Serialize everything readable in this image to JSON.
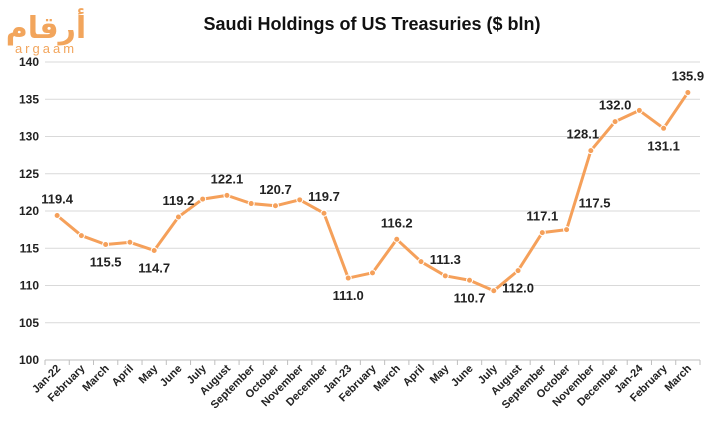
{
  "logo": {
    "arabic": "أرقام",
    "latin": "argaam"
  },
  "colors": {
    "line": "#f5a05a",
    "grid": "#d9d9d9",
    "axis": "#bfbfbf",
    "text": "#222222"
  },
  "chart_data": {
    "type": "line",
    "title": "Saudi Holdings of US Treasuries ($ bln)",
    "xlabel": "",
    "ylabel": "",
    "ylim": [
      100,
      140
    ],
    "yticks": [
      100,
      105,
      110,
      115,
      120,
      125,
      130,
      135,
      140
    ],
    "grid": "horizontal",
    "legend": "none",
    "categories": [
      "Jan-22",
      "February",
      "March",
      "April",
      "May",
      "June",
      "July",
      "August",
      "September",
      "October",
      "November",
      "December",
      "Jan-23",
      "February",
      "March",
      "April",
      "May",
      "June",
      "July",
      "August",
      "September",
      "October",
      "November",
      "December",
      "Jan-24",
      "February",
      "March"
    ],
    "series": [
      {
        "values": [
          119.4,
          116.7,
          115.5,
          115.8,
          114.7,
          119.2,
          121.6,
          122.1,
          121.0,
          120.7,
          121.5,
          119.7,
          111.0,
          111.7,
          116.2,
          113.2,
          111.3,
          110.7,
          109.3,
          112.0,
          117.1,
          117.5,
          128.1,
          132.0,
          133.5,
          131.1,
          135.9
        ]
      }
    ],
    "data_labels": [
      {
        "index": 0,
        "text": "119.4"
      },
      {
        "index": 2,
        "text": "115.5"
      },
      {
        "index": 4,
        "text": "114.7"
      },
      {
        "index": 5,
        "text": "119.2"
      },
      {
        "index": 7,
        "text": "122.1"
      },
      {
        "index": 9,
        "text": "120.7"
      },
      {
        "index": 11,
        "text": "119.7"
      },
      {
        "index": 12,
        "text": "111.0"
      },
      {
        "index": 14,
        "text": "116.2"
      },
      {
        "index": 16,
        "text": "111.3"
      },
      {
        "index": 17,
        "text": "110.7"
      },
      {
        "index": 19,
        "text": "112.0"
      },
      {
        "index": 20,
        "text": "117.1"
      },
      {
        "index": 21,
        "text": "117.5"
      },
      {
        "index": 22,
        "text": "128.1"
      },
      {
        "index": 23,
        "text": "132.0"
      },
      {
        "index": 25,
        "text": "131.1"
      },
      {
        "index": 26,
        "text": "135.9"
      }
    ]
  }
}
